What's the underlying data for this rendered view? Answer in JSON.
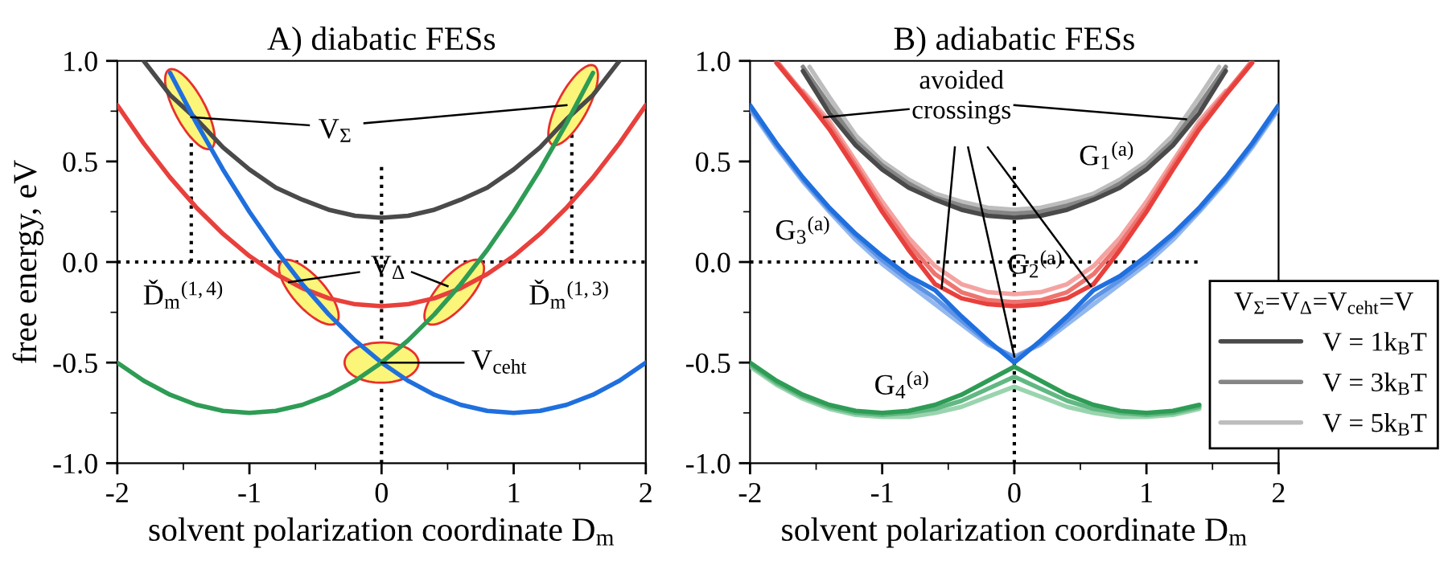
{
  "chart_data": [
    {
      "type": "line",
      "title": "A) diabatic FESs",
      "xlabel": "solvent polarization coordinate D$_{m}$",
      "ylabel": "free energy, eV",
      "xlim": [
        -2,
        2
      ],
      "xticks": [
        -2,
        -1,
        0,
        1,
        2
      ],
      "ylim": [
        -1,
        1
      ],
      "yticks": [
        {
          "value": -1,
          "label": "-1.0"
        },
        {
          "value": -0.5,
          "label": "-0.5"
        },
        {
          "value": 0,
          "label": "0.0"
        },
        {
          "value": 0.5,
          "label": "0.5"
        },
        {
          "value": 1,
          "label": "1.0"
        }
      ],
      "grid": false,
      "legend": false,
      "marker": "none",
      "line_style": "solid",
      "ref_lines": [
        {
          "axis": "y",
          "value": 0,
          "color": "#000000",
          "line_style": "dotted"
        },
        {
          "axis": "x",
          "value": 0,
          "color": "#000000",
          "line_style": "dotted"
        },
        {
          "axis": "x",
          "value": -1.44,
          "color": "#000000",
          "line_style": "dotted"
        },
        {
          "axis": "x",
          "value": 1.44,
          "color": "#000000",
          "line_style": "dotted"
        }
      ],
      "annotations": [
        {
          "text": "V$_{Σ}$",
          "x": -1.44,
          "y": 0.72
        },
        {
          "text": "V$_{Δ}$",
          "x": -0.7,
          "y": -0.1
        },
        {
          "text": "V$_{ceht}$",
          "x": 0,
          "y": -0.5
        },
        "Ď$_{m}$$^{(1,4)}$",
        "Ď$_{m}$$^{(1,3)}$"
      ],
      "series": [
        {
          "color": "#4a4a4a",
          "x": [
            -1.8,
            -1.6,
            -1.4,
            -1.2,
            -1.0,
            -0.8,
            -0.6,
            -0.4,
            -0.2,
            0,
            0.2,
            0.4,
            0.6,
            0.8,
            1.0,
            1.2,
            1.4,
            1.6,
            1.8
          ],
          "values": [
            1.0,
            0.83,
            0.71,
            0.57,
            0.46,
            0.37,
            0.31,
            0.26,
            0.23,
            0.22,
            0.23,
            0.26,
            0.31,
            0.37,
            0.46,
            0.57,
            0.71,
            0.83,
            1.0
          ]
        },
        {
          "color": "#e8403c",
          "x": [
            -2.0,
            -1.8,
            -1.6,
            -1.4,
            -1.2,
            -1.0,
            -0.8,
            -0.6,
            -0.4,
            -0.2,
            0,
            0.2,
            0.4,
            0.6,
            0.8,
            1.0,
            1.2,
            1.4,
            1.6,
            1.8,
            2.0
          ],
          "values": [
            0.78,
            0.59,
            0.42,
            0.27,
            0.14,
            0.03,
            -0.06,
            -0.13,
            -0.18,
            -0.21,
            -0.22,
            -0.21,
            -0.18,
            -0.13,
            -0.06,
            0.03,
            0.14,
            0.27,
            0.42,
            0.59,
            0.78
          ]
        },
        {
          "color": "#1f6fde",
          "x": [
            -1.6,
            -1.4,
            -1.2,
            -1.0,
            -0.8,
            -0.6,
            -0.4,
            -0.2,
            0,
            0.2,
            0.4,
            0.6,
            0.8,
            1.0,
            1.2,
            1.4,
            1.6,
            1.8,
            2.0
          ],
          "values": [
            0.94,
            0.69,
            0.46,
            0.25,
            0.06,
            -0.11,
            -0.26,
            -0.39,
            -0.5,
            -0.59,
            -0.66,
            -0.71,
            -0.74,
            -0.75,
            -0.74,
            -0.71,
            -0.66,
            -0.59,
            -0.5
          ]
        },
        {
          "color": "#2e9c55",
          "x": [
            -2.0,
            -1.8,
            -1.6,
            -1.4,
            -1.2,
            -1.0,
            -0.8,
            -0.6,
            -0.4,
            -0.2,
            0,
            0.2,
            0.4,
            0.6,
            0.8,
            1.0,
            1.2,
            1.4,
            1.6
          ],
          "values": [
            -0.5,
            -0.59,
            -0.66,
            -0.71,
            -0.74,
            -0.75,
            -0.74,
            -0.71,
            -0.66,
            -0.59,
            -0.5,
            -0.39,
            -0.26,
            -0.11,
            0.06,
            0.25,
            0.46,
            0.69,
            0.94
          ]
        }
      ]
    },
    {
      "type": "line",
      "title": "B) adiabatic FESs",
      "xlabel": "solvent polarization coordinate D$_{m}$",
      "xlim": [
        -2,
        2
      ],
      "xticks": [
        -2,
        -1,
        0,
        1,
        2
      ],
      "ylim": [
        -1,
        1
      ],
      "yticks": [
        {
          "value": -1,
          "label": "-1.0"
        },
        {
          "value": -0.5,
          "label": "-0.5"
        },
        {
          "value": 0,
          "label": "0.0"
        },
        {
          "value": 0.5,
          "label": "0.5"
        },
        {
          "value": 1,
          "label": "1.0"
        }
      ],
      "grid": false,
      "legend": "right",
      "legend_title": "V$_{Σ}$=V$_{Δ}$=V$_{ceht}$=V",
      "marker": "none",
      "line_style": "solid",
      "ref_lines": [
        {
          "axis": "y",
          "value": 0,
          "color": "#000000",
          "line_style": "dotted"
        },
        {
          "axis": "x",
          "value": 0,
          "color": "#000000",
          "line_style": "dotted"
        }
      ],
      "annotations": [
        {
          "text": "avoided\ncrossings",
          "x": -1.44,
          "y": 0.72
        },
        "G$_{1}$$^{(a)}$",
        "G$_{2}$$^{(a)}$",
        "G$_{3}$$^{(a)}$",
        "G$_{4}$$^{(a)}$"
      ],
      "series": [
        {
          "color": "#f4a3a1",
          "x": [
            -1.6,
            -1.4,
            -1.2,
            -1.0,
            -0.8,
            -0.6,
            -0.4,
            -0.2,
            0,
            0.2,
            0.4,
            0.6,
            0.8,
            1.0,
            1.2,
            1.4,
            1.6
          ],
          "values": [
            0.85,
            0.7,
            0.5,
            0.3,
            0.12,
            -0.02,
            -0.11,
            -0.15,
            -0.16,
            -0.15,
            -0.11,
            -0.02,
            0.12,
            0.3,
            0.5,
            0.7,
            0.85
          ]
        },
        {
          "color": "#ee7470",
          "x": [
            -1.8,
            -1.6,
            -1.4,
            -1.2,
            -1.0,
            -0.8,
            -0.6,
            -0.4,
            -0.2,
            0,
            0.2,
            0.4,
            0.6,
            0.8,
            1.0,
            1.2,
            1.4,
            1.6,
            1.8
          ],
          "values": [
            1.0,
            0.84,
            0.68,
            0.48,
            0.27,
            0.09,
            -0.06,
            -0.15,
            -0.19,
            -0.2,
            -0.19,
            -0.15,
            -0.06,
            0.09,
            0.27,
            0.48,
            0.68,
            0.84,
            1.0
          ]
        },
        {
          "color": "#e8403c",
          "x": [
            -1.8,
            -1.6,
            -1.4,
            -1.2,
            -1.0,
            -0.8,
            -0.6,
            -0.4,
            -0.2,
            0,
            0.2,
            0.4,
            0.6,
            0.8,
            1.0,
            1.2,
            1.4,
            1.6,
            1.8
          ],
          "values": [
            0.99,
            0.83,
            0.66,
            0.46,
            0.25,
            0.06,
            -0.11,
            -0.18,
            -0.21,
            -0.22,
            -0.21,
            -0.18,
            -0.11,
            0.06,
            0.25,
            0.46,
            0.66,
            0.83,
            0.99
          ]
        },
        {
          "name": "V = 5k$_{B}$T",
          "color": "#bdbdbd",
          "x": [
            -1.55,
            -1.4,
            -1.2,
            -1.0,
            -0.8,
            -0.6,
            -0.4,
            -0.2,
            0,
            0.2,
            0.4,
            0.6,
            0.8,
            1.0,
            1.2,
            1.4,
            1.55
          ],
          "values": [
            0.97,
            0.82,
            0.63,
            0.5,
            0.41,
            0.34,
            0.3,
            0.27,
            0.26,
            0.27,
            0.3,
            0.34,
            0.41,
            0.5,
            0.63,
            0.82,
            0.97
          ]
        },
        {
          "name": "V = 3k$_{B}$T",
          "color": "#858585",
          "x": [
            -1.6,
            -1.4,
            -1.2,
            -1.0,
            -0.8,
            -0.6,
            -0.4,
            -0.2,
            0,
            0.2,
            0.4,
            0.6,
            0.8,
            1.0,
            1.2,
            1.4,
            1.6
          ],
          "values": [
            0.97,
            0.78,
            0.6,
            0.48,
            0.39,
            0.32,
            0.28,
            0.25,
            0.24,
            0.25,
            0.28,
            0.32,
            0.39,
            0.48,
            0.6,
            0.78,
            0.97
          ]
        },
        {
          "name": "V = 1k$_{B}$T",
          "color": "#4a4a4a",
          "x": [
            -1.6,
            -1.4,
            -1.2,
            -1.0,
            -0.8,
            -0.6,
            -0.4,
            -0.2,
            0,
            0.2,
            0.4,
            0.6,
            0.8,
            1.0,
            1.2,
            1.4,
            1.6
          ],
          "values": [
            0.95,
            0.74,
            0.58,
            0.46,
            0.37,
            0.31,
            0.26,
            0.23,
            0.22,
            0.23,
            0.26,
            0.31,
            0.37,
            0.46,
            0.58,
            0.74,
            0.95
          ]
        },
        {
          "color": "#93b8ee",
          "x": [
            -2.0,
            -1.8,
            -1.6,
            -1.4,
            -1.2,
            -1.0,
            -0.8,
            -0.6,
            -0.4,
            -0.2,
            0,
            0.2,
            0.4,
            0.6,
            0.8,
            1.0,
            1.2,
            1.4,
            1.6,
            1.8,
            2.0
          ],
          "values": [
            0.76,
            0.57,
            0.4,
            0.25,
            0.11,
            -0.01,
            -0.11,
            -0.21,
            -0.31,
            -0.41,
            -0.47,
            -0.41,
            -0.31,
            -0.21,
            -0.11,
            -0.01,
            0.11,
            0.25,
            0.4,
            0.57,
            0.76
          ]
        },
        {
          "color": "#5e94e6",
          "x": [
            -2.0,
            -1.8,
            -1.6,
            -1.4,
            -1.2,
            -1.0,
            -0.8,
            -0.6,
            -0.4,
            -0.2,
            0,
            0.2,
            0.4,
            0.6,
            0.8,
            1.0,
            1.2,
            1.4,
            1.6,
            1.8,
            2.0
          ],
          "values": [
            0.77,
            0.58,
            0.41,
            0.26,
            0.13,
            0.01,
            -0.09,
            -0.18,
            -0.29,
            -0.4,
            -0.48,
            -0.4,
            -0.29,
            -0.18,
            -0.09,
            0.01,
            0.13,
            0.26,
            0.41,
            0.58,
            0.77
          ]
        },
        {
          "color": "#1f6fde",
          "x": [
            -2.0,
            -1.8,
            -1.6,
            -1.4,
            -1.2,
            -1.0,
            -0.8,
            -0.6,
            -0.4,
            -0.2,
            0,
            0.2,
            0.4,
            0.6,
            0.8,
            1.0,
            1.2,
            1.4,
            1.6,
            1.8,
            2.0
          ],
          "values": [
            0.78,
            0.59,
            0.42,
            0.27,
            0.14,
            0.03,
            -0.07,
            -0.14,
            -0.27,
            -0.39,
            -0.5,
            -0.39,
            -0.27,
            -0.14,
            -0.07,
            0.03,
            0.14,
            0.27,
            0.42,
            0.59,
            0.78
          ]
        },
        {
          "color": "#9ad4ae",
          "x": [
            -2.0,
            -1.8,
            -1.6,
            -1.4,
            -1.2,
            -1.0,
            -0.8,
            -0.6,
            -0.4,
            -0.2,
            0,
            0.2,
            0.4,
            0.6,
            0.8,
            1.0,
            1.2,
            1.4
          ],
          "values": [
            -0.52,
            -0.61,
            -0.68,
            -0.73,
            -0.76,
            -0.77,
            -0.77,
            -0.75,
            -0.72,
            -0.67,
            -0.62,
            -0.67,
            -0.72,
            -0.75,
            -0.77,
            -0.77,
            -0.76,
            -0.73
          ]
        },
        {
          "color": "#62b883",
          "x": [
            -2.0,
            -1.8,
            -1.6,
            -1.4,
            -1.2,
            -1.0,
            -0.8,
            -0.6,
            -0.4,
            -0.2,
            0,
            0.2,
            0.4,
            0.6,
            0.8,
            1.0,
            1.2,
            1.4
          ],
          "values": [
            -0.51,
            -0.6,
            -0.67,
            -0.72,
            -0.75,
            -0.76,
            -0.75,
            -0.73,
            -0.69,
            -0.63,
            -0.57,
            -0.63,
            -0.69,
            -0.73,
            -0.75,
            -0.76,
            -0.75,
            -0.72
          ]
        },
        {
          "color": "#2e9c55",
          "x": [
            -2.0,
            -1.8,
            -1.6,
            -1.4,
            -1.2,
            -1.0,
            -0.8,
            -0.6,
            -0.4,
            -0.2,
            0,
            0.2,
            0.4,
            0.6,
            0.8,
            1.0,
            1.2,
            1.4
          ],
          "values": [
            -0.5,
            -0.59,
            -0.66,
            -0.71,
            -0.74,
            -0.75,
            -0.74,
            -0.71,
            -0.66,
            -0.59,
            -0.52,
            -0.59,
            -0.66,
            -0.71,
            -0.74,
            -0.75,
            -0.74,
            -0.71
          ]
        }
      ]
    }
  ]
}
